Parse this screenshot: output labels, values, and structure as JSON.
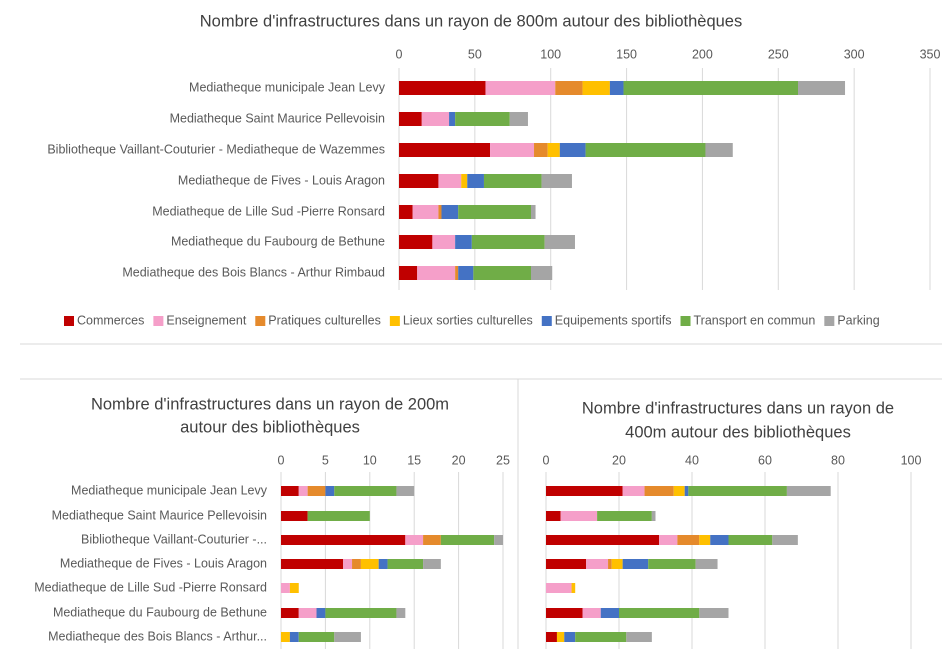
{
  "chart_data": [
    {
      "type": "stacked_barh",
      "title": [
        "Nombre d'infrastructures dans un rayon de 800m autour des bibliothèques"
      ],
      "categories": [
        "Mediatheque municipale Jean Levy",
        "Mediatheque Saint Maurice Pellevoisin",
        "Bibliotheque Vaillant-Couturier - Mediatheque de Wazemmes",
        "Mediatheque de Fives - Louis Aragon",
        "Mediatheque de Lille Sud -Pierre Ronsard",
        "Mediatheque du Faubourg de Bethune",
        "Mediatheque des Bois Blancs - Arthur Rimbaud"
      ],
      "series": [
        {
          "name": "Commerces",
          "color": "#c00000",
          "values": [
            57,
            15,
            60,
            26,
            9,
            22,
            12
          ]
        },
        {
          "name": "Enseignement",
          "color": "#f59fc9",
          "values": [
            46,
            18,
            29,
            15,
            17,
            15,
            25
          ]
        },
        {
          "name": "Pratiques culturelles",
          "color": "#e58a2c",
          "values": [
            18,
            0,
            9,
            0,
            2,
            0,
            2
          ]
        },
        {
          "name": "Lieux sorties culturelles",
          "color": "#ffc000",
          "values": [
            18,
            0,
            8,
            4,
            0,
            0,
            0
          ]
        },
        {
          "name": "Equipements sportifs",
          "color": "#4472c4",
          "values": [
            9,
            4,
            17,
            11,
            11,
            11,
            10
          ]
        },
        {
          "name": "Transport en commun",
          "color": "#70ad47",
          "values": [
            115,
            36,
            79,
            38,
            48,
            48,
            38
          ]
        },
        {
          "name": "Parking",
          "color": "#a5a5a5",
          "values": [
            31,
            12,
            18,
            20,
            3,
            20,
            14
          ]
        }
      ],
      "xlim": [
        0,
        350
      ],
      "xticks": [
        0,
        50,
        100,
        150,
        200,
        250,
        300,
        350
      ],
      "grid": true,
      "legend": "bottom"
    },
    {
      "type": "stacked_barh",
      "title": [
        "Nombre d'infrastructures dans un rayon de 200m",
        "autour des bibliothèques"
      ],
      "categories": [
        "Mediatheque municipale Jean Levy",
        "Mediatheque Saint Maurice Pellevoisin",
        "Bibliotheque Vaillant-Couturier -...",
        "Mediatheque de Fives - Louis Aragon",
        "Mediatheque de Lille Sud -Pierre Ronsard",
        "Mediatheque du Faubourg de Bethune",
        "Mediatheque des Bois Blancs - Arthur..."
      ],
      "series": [
        {
          "color": "#c00000",
          "values": [
            2,
            3,
            14,
            7,
            0,
            2,
            0
          ]
        },
        {
          "color": "#f59fc9",
          "values": [
            1,
            0,
            2,
            1,
            1,
            2,
            0
          ]
        },
        {
          "color": "#e58a2c",
          "values": [
            2,
            0,
            2,
            1,
            0,
            0,
            0
          ]
        },
        {
          "color": "#ffc000",
          "values": [
            0,
            0,
            0,
            2,
            1,
            0,
            1
          ]
        },
        {
          "color": "#4472c4",
          "values": [
            1,
            0,
            0,
            1,
            0,
            1,
            1
          ]
        },
        {
          "color": "#70ad47",
          "values": [
            7,
            7,
            6,
            4,
            0,
            8,
            4
          ]
        },
        {
          "color": "#a5a5a5",
          "values": [
            2,
            0,
            1,
            2,
            0,
            1,
            3
          ]
        }
      ],
      "xlim": [
        0,
        25
      ],
      "xticks": [
        0,
        5,
        10,
        15,
        20,
        25
      ],
      "grid": true
    },
    {
      "type": "stacked_barh",
      "title": [
        "Nombre d'infrastructures dans un rayon de",
        "400m autour des bibliothèques"
      ],
      "categories": [
        null,
        null,
        null,
        null,
        null,
        null,
        null
      ],
      "series": [
        {
          "color": "#c00000",
          "values": [
            21,
            4,
            31,
            11,
            0,
            10,
            3
          ]
        },
        {
          "color": "#f59fc9",
          "values": [
            6,
            10,
            5,
            6,
            7,
            5,
            0
          ]
        },
        {
          "color": "#e58a2c",
          "values": [
            8,
            0,
            6,
            1,
            0,
            0,
            0
          ]
        },
        {
          "color": "#ffc000",
          "values": [
            3,
            0,
            3,
            3,
            1,
            0,
            2
          ]
        },
        {
          "color": "#4472c4",
          "values": [
            1,
            0,
            5,
            7,
            0,
            5,
            3
          ]
        },
        {
          "color": "#70ad47",
          "values": [
            27,
            15,
            12,
            13,
            0,
            22,
            14
          ]
        },
        {
          "color": "#a5a5a5",
          "values": [
            12,
            1,
            7,
            6,
            0,
            8,
            7
          ]
        }
      ],
      "xlim": [
        0,
        100
      ],
      "xticks": [
        0,
        20,
        40,
        60,
        80,
        100
      ],
      "grid": true
    }
  ]
}
